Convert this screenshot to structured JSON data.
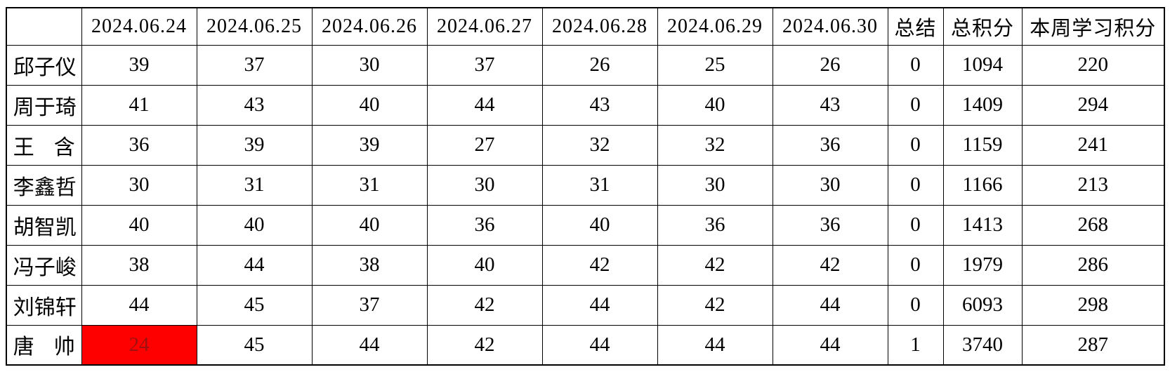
{
  "table": {
    "corner_label": "",
    "columns": [
      "",
      "2024.06.24",
      "2024.06.25",
      "2024.06.26",
      "2024.06.27",
      "2024.06.28",
      "2024.06.29",
      "2024.06.30",
      "总结",
      "总积分",
      "本周学习积分"
    ],
    "rows": [
      {
        "name": "邱子仪",
        "scores": [
          39,
          37,
          30,
          37,
          26,
          25,
          26
        ],
        "summary": 0,
        "total": 1094,
        "week": 220
      },
      {
        "name": "周于琦",
        "scores": [
          41,
          43,
          40,
          44,
          43,
          40,
          43
        ],
        "summary": 0,
        "total": 1409,
        "week": 294
      },
      {
        "name": "王含",
        "scores": [
          36,
          39,
          39,
          27,
          32,
          32,
          36
        ],
        "summary": 0,
        "total": 1159,
        "week": 241
      },
      {
        "name": "李鑫哲",
        "scores": [
          30,
          31,
          31,
          30,
          31,
          30,
          30
        ],
        "summary": 0,
        "total": 1166,
        "week": 213
      },
      {
        "name": "胡智凯",
        "scores": [
          40,
          40,
          40,
          36,
          40,
          36,
          36
        ],
        "summary": 0,
        "total": 1413,
        "week": 268
      },
      {
        "name": "冯子峻",
        "scores": [
          38,
          44,
          38,
          40,
          42,
          42,
          42
        ],
        "summary": 0,
        "total": 1979,
        "week": 286
      },
      {
        "name": "刘锦轩",
        "scores": [
          44,
          45,
          37,
          42,
          44,
          42,
          44
        ],
        "summary": 0,
        "total": 6093,
        "week": 298
      },
      {
        "name": "唐帅",
        "scores": [
          24,
          45,
          44,
          42,
          44,
          44,
          44
        ],
        "summary": 1,
        "total": 3740,
        "week": 287
      }
    ]
  },
  "highlight": {
    "row_index": 7,
    "score_index": 0,
    "cell_value": 24
  },
  "colors": {
    "accent_red": "#FF0000",
    "highlight_bg": "#FF0000",
    "highlight_text": "#A01010",
    "border": "#000000",
    "text": "#000000",
    "background": "#FFFFFF"
  }
}
